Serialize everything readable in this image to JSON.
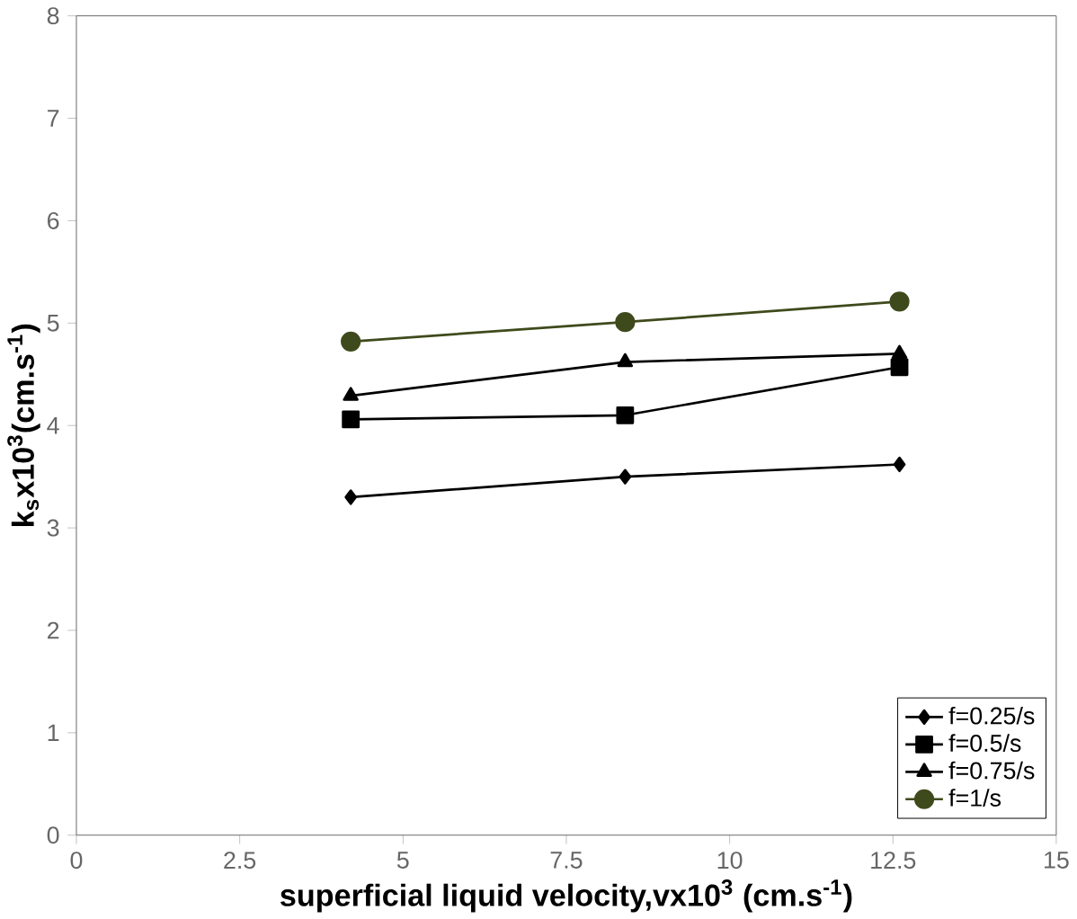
{
  "chart_data": {
    "type": "line",
    "xlabel": "superficial liquid velocity,vx10$^{3}$ (cm.s$^{-1}$)",
    "ylabel": "k$_{s}$x10$^{3}$(cm.s$^{-1}$)",
    "x": [
      4.2,
      8.4,
      12.6
    ],
    "series": [
      {
        "name": "f=0.25/s",
        "color": "#000000",
        "marker": "diamond",
        "values": [
          3.3,
          3.5,
          3.62
        ]
      },
      {
        "name": "f=0.5/s",
        "color": "#000000",
        "marker": "square",
        "values": [
          4.06,
          4.1,
          4.57
        ]
      },
      {
        "name": "f=0.75/s",
        "color": "#000000",
        "marker": "triangle",
        "values": [
          4.29,
          4.62,
          4.7
        ]
      },
      {
        "name": "f=1/s",
        "color": "#3f4a1c",
        "marker": "circle",
        "values": [
          4.82,
          5.01,
          5.21
        ]
      }
    ],
    "xlim": [
      0,
      15
    ],
    "xticks": [
      0,
      2.5,
      5,
      7.5,
      10,
      12.5,
      15
    ],
    "ylim": [
      0,
      8
    ],
    "yticks": [
      0,
      1,
      2,
      3,
      4,
      5,
      6,
      7,
      8
    ],
    "grid": false,
    "legend": "bottom right",
    "line_style": "solid"
  }
}
